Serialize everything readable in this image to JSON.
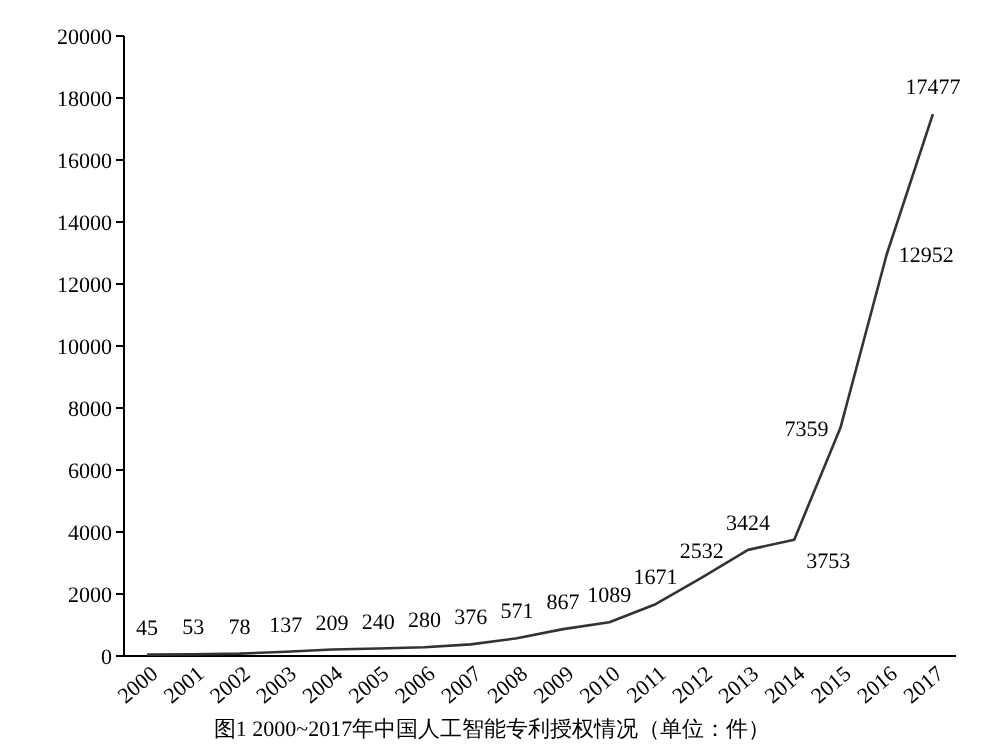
{
  "chart_data": {
    "type": "line",
    "annotations": [
      "图1  2000~2017年中国人工智能专利授权情况（单位：件）"
    ],
    "categories": [
      "2000",
      "2001",
      "2002",
      "2003",
      "2004",
      "2005",
      "2006",
      "2007",
      "2008",
      "2009",
      "2010",
      "2011",
      "2012",
      "2013",
      "2014",
      "2015",
      "2016",
      "2017"
    ],
    "series": [
      {
        "color": "#333333",
        "values": [
          45,
          53,
          78,
          137,
          209,
          240,
          280,
          376,
          571,
          867,
          1089,
          1671,
          2532,
          3424,
          3753,
          7359,
          12952,
          17477
        ]
      }
    ],
    "ylim": [
      0,
      20000
    ],
    "yticks": [
      0,
      2000,
      4000,
      6000,
      8000,
      10000,
      12000,
      14000,
      16000,
      18000,
      20000
    ],
    "data_labels": true,
    "grid": false,
    "marker": "none",
    "line_style": "solid"
  }
}
